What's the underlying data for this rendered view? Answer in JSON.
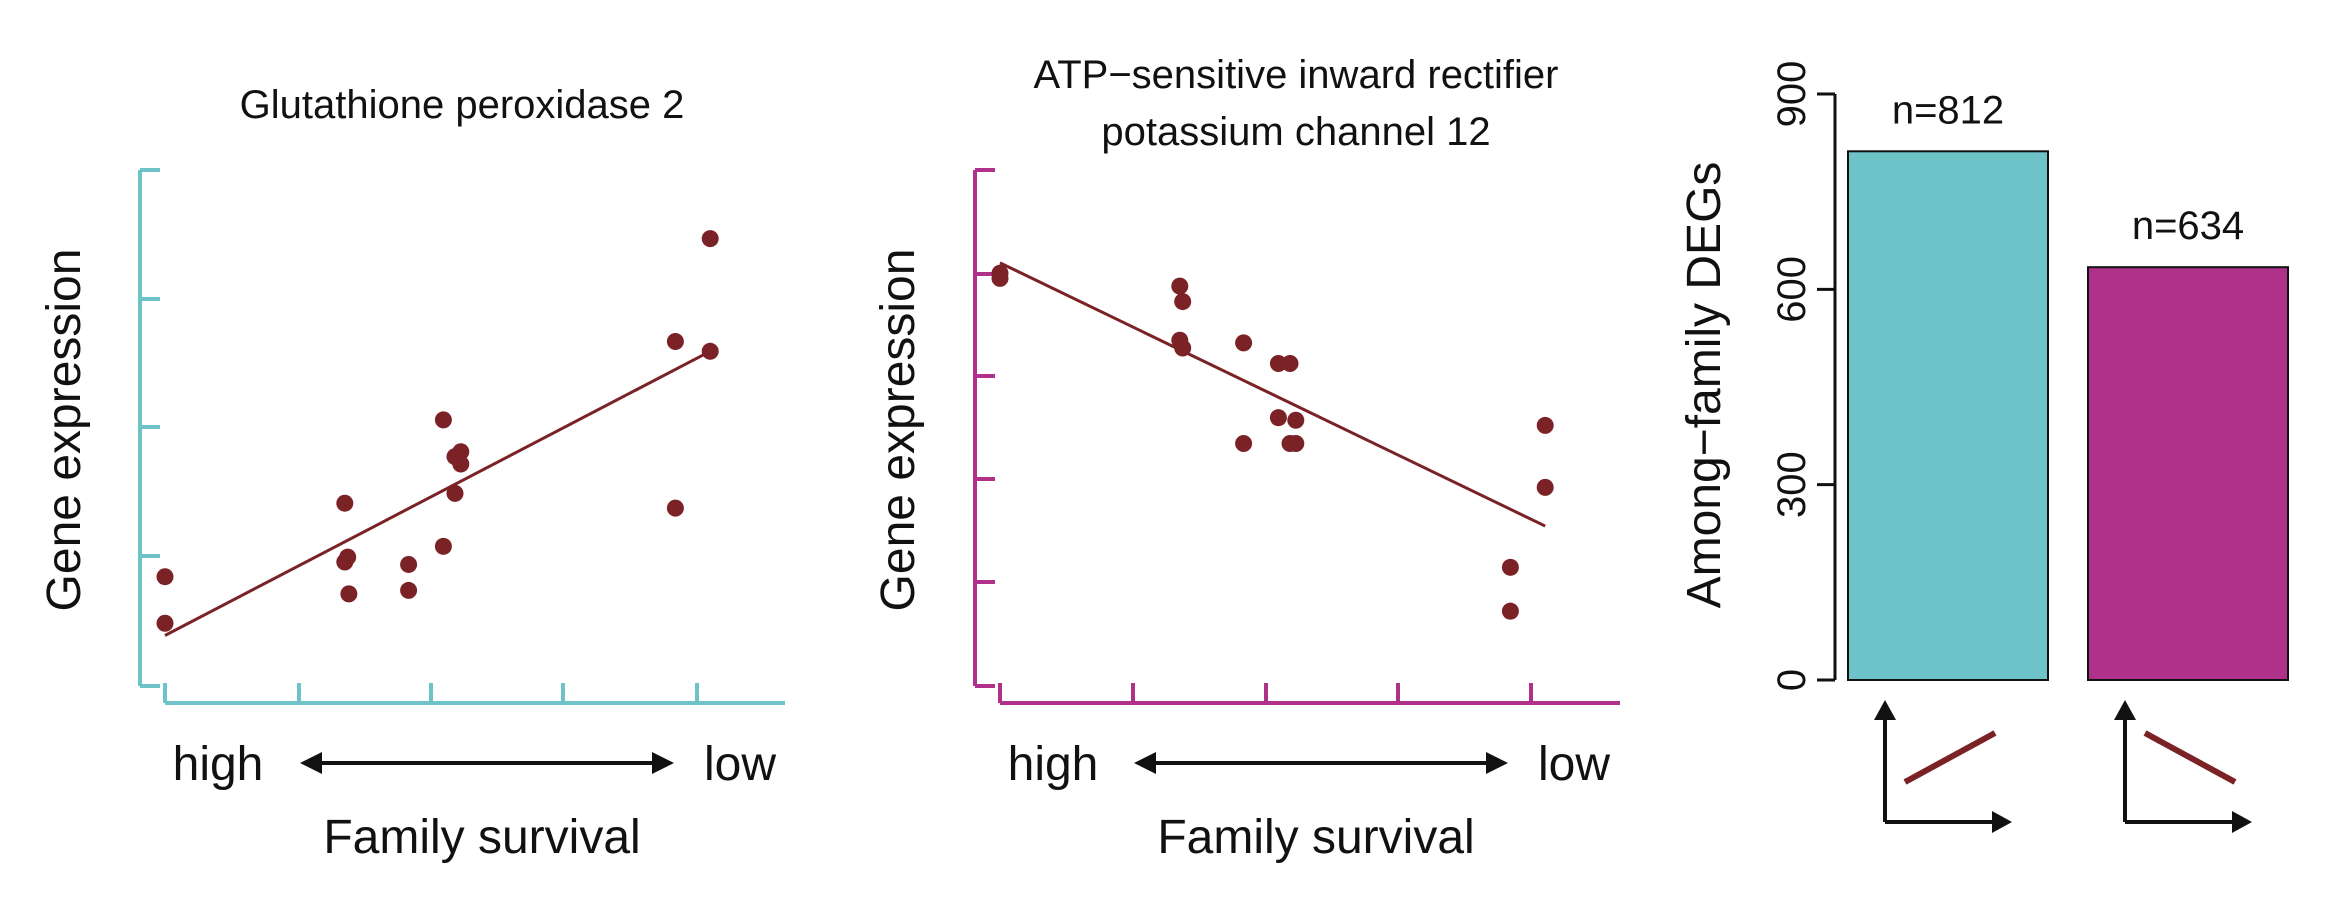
{
  "colors": {
    "teal": "#6ec3c8",
    "magenta": "#b0318a",
    "point": "#7a2226",
    "line": "#7a2226",
    "arrow": "#111111"
  },
  "panels": {
    "left": {
      "title_lines": [
        "Glutathione peroxidase 2"
      ],
      "ylabel": "Gene expression",
      "xlabel": "Family survival",
      "x_high": "high",
      "x_low": "low"
    },
    "middle": {
      "title_lines": [
        "ATP−sensitive inward rectifier",
        "potassium channel 12"
      ],
      "ylabel": "Gene expression",
      "xlabel": "Family survival",
      "x_high": "high",
      "x_low": "low"
    },
    "right": {
      "ylabel": "Among−family DEGs"
    }
  },
  "chart_data": [
    {
      "type": "scatter",
      "title": "Glutathione peroxidase 2",
      "xlabel": "Family survival",
      "ylabel": "Gene expression",
      "xlim": [
        0,
        1
      ],
      "ylim": [
        0,
        1
      ],
      "color": "#6ec3c8",
      "points": [
        [
          0.0,
          0.17
        ],
        [
          0.0,
          0.075
        ],
        [
          0.31,
          0.32
        ],
        [
          0.31,
          0.2
        ],
        [
          0.315,
          0.21
        ],
        [
          0.317,
          0.135
        ],
        [
          0.42,
          0.195
        ],
        [
          0.42,
          0.142
        ],
        [
          0.48,
          0.49
        ],
        [
          0.48,
          0.232
        ],
        [
          0.5,
          0.415
        ],
        [
          0.5,
          0.34
        ],
        [
          0.51,
          0.425
        ],
        [
          0.51,
          0.4
        ],
        [
          0.88,
          0.65
        ],
        [
          0.88,
          0.31
        ],
        [
          0.94,
          0.86
        ],
        [
          0.94,
          0.63
        ]
      ],
      "fit": [
        [
          0.0,
          0.05
        ],
        [
          0.94,
          0.63
        ]
      ]
    },
    {
      "type": "scatter",
      "title": "ATP−sensitive inward rectifier potassium channel 12",
      "xlabel": "Family survival",
      "ylabel": "Gene expression",
      "xlim": [
        0,
        1
      ],
      "ylim": [
        0,
        1
      ],
      "color": "#b0318a",
      "points": [
        [
          0.0,
          0.8
        ],
        [
          0.0,
          0.79
        ],
        [
          0.31,
          0.775
        ],
        [
          0.315,
          0.745
        ],
        [
          0.31,
          0.67
        ],
        [
          0.315,
          0.655
        ],
        [
          0.42,
          0.665
        ],
        [
          0.42,
          0.47
        ],
        [
          0.48,
          0.625
        ],
        [
          0.48,
          0.52
        ],
        [
          0.5,
          0.625
        ],
        [
          0.5,
          0.47
        ],
        [
          0.51,
          0.515
        ],
        [
          0.51,
          0.47
        ],
        [
          0.88,
          0.23
        ],
        [
          0.88,
          0.145
        ],
        [
          0.94,
          0.505
        ],
        [
          0.94,
          0.385
        ]
      ],
      "fit": [
        [
          0.0,
          0.82
        ],
        [
          0.94,
          0.31
        ]
      ]
    },
    {
      "type": "bar",
      "ylabel": "Among−family DEGs",
      "ylim": [
        0,
        900
      ],
      "yticks": [
        0,
        300,
        600,
        900
      ],
      "categories": [
        "positive",
        "negative"
      ],
      "values": [
        812,
        634
      ],
      "value_labels": [
        "n=812",
        "n=634"
      ],
      "colors": [
        "#6ec3c8",
        "#b0318a"
      ]
    }
  ]
}
